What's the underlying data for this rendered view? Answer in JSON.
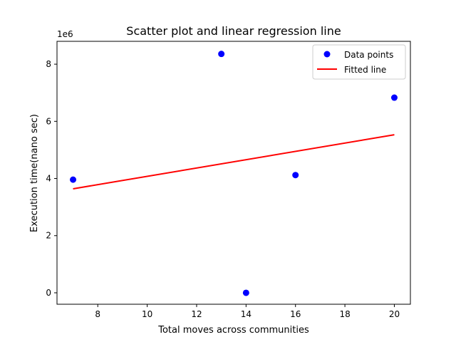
{
  "chart_data": {
    "type": "scatter",
    "title": "Scatter plot and linear regression line",
    "xlabel": "Total moves across communities",
    "ylabel": "Execution time(nano sec)",
    "y_offset_label": "1e6",
    "xlim": [
      6.35,
      20.65
    ],
    "ylim": [
      -400000,
      8800000
    ],
    "xticks": [
      8,
      10,
      12,
      14,
      16,
      18,
      20
    ],
    "yticks": [
      0,
      2000000,
      4000000,
      6000000,
      8000000
    ],
    "ytick_labels": [
      "0",
      "2",
      "4",
      "6",
      "8"
    ],
    "grid": false,
    "legend_position": "top-right",
    "series": [
      {
        "name": "Data points",
        "kind": "scatter",
        "color": "#0000ff",
        "x": [
          7,
          13,
          14,
          16,
          20
        ],
        "y": [
          3960000,
          8360000,
          0,
          4120000,
          6830000
        ]
      },
      {
        "name": "Fitted line",
        "kind": "line",
        "color": "#ff0000",
        "x": [
          7,
          20
        ],
        "y": [
          3640000,
          5530000
        ]
      }
    ]
  }
}
